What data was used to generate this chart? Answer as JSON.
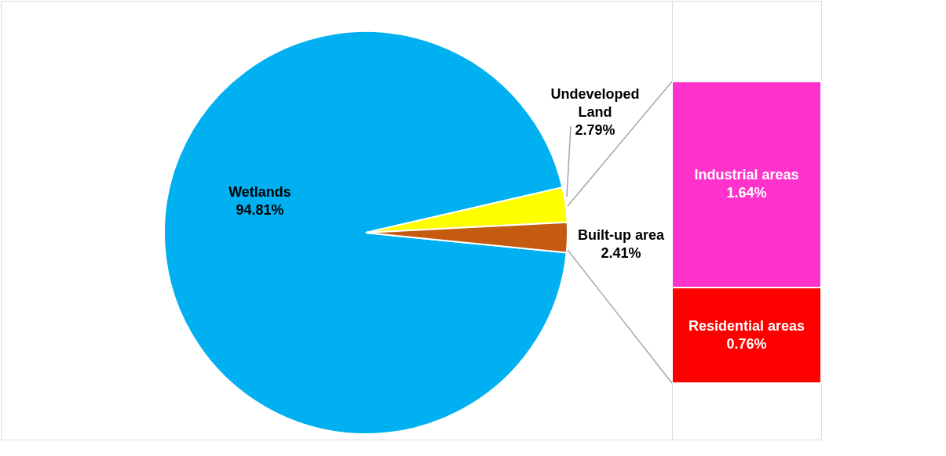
{
  "chart_data": [
    {
      "type": "pie",
      "categories": [
        "Wetlands",
        "Undeveloped Land",
        "Built-up area"
      ],
      "values": [
        94.81,
        2.79,
        2.41
      ],
      "colors": [
        "#00b0f0",
        "#ffff00",
        "#c55a11"
      ],
      "value_labels": [
        "94.81%",
        "2.79%",
        "2.41%"
      ]
    },
    {
      "type": "bar",
      "stacked": true,
      "categories": [
        null
      ],
      "series": [
        {
          "name": "Residential areas",
          "color": "#ff0000",
          "values": [
            0.76
          ],
          "value_labels": [
            "0.76%"
          ]
        },
        {
          "name": "Industrial areas",
          "color": "#ff33cc",
          "values": [
            1.64
          ],
          "value_labels": [
            "1.64%"
          ]
        }
      ]
    }
  ]
}
